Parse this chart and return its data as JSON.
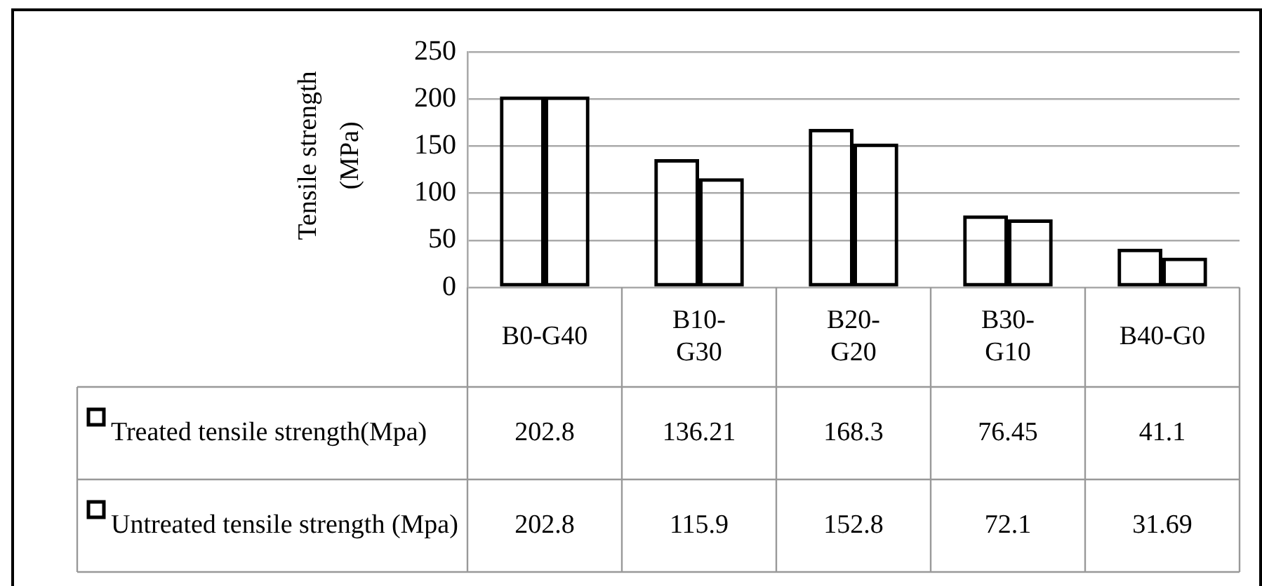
{
  "chart_data": {
    "type": "bar",
    "ylabel": "Tensile strength\n(MPa)",
    "categories": [
      "B0-G40",
      "B10-G30",
      "B20-G20",
      "B30-G10",
      "B40-G0"
    ],
    "series": [
      {
        "name": "Treated tensile strength(Mpa)",
        "color": "#000000",
        "values": [
          202.8,
          136.21,
          168.3,
          76.45,
          41.1
        ]
      },
      {
        "name": "Untreated tensile strength (Mpa)",
        "color": "#000000",
        "values": [
          202.8,
          115.9,
          152.8,
          72.1,
          31.69
        ]
      }
    ],
    "ylim": [
      0,
      250
    ],
    "yticks": [
      0,
      50,
      100,
      150,
      200,
      250
    ],
    "grid": "y",
    "legend": "bottom left",
    "data_labels": true
  }
}
